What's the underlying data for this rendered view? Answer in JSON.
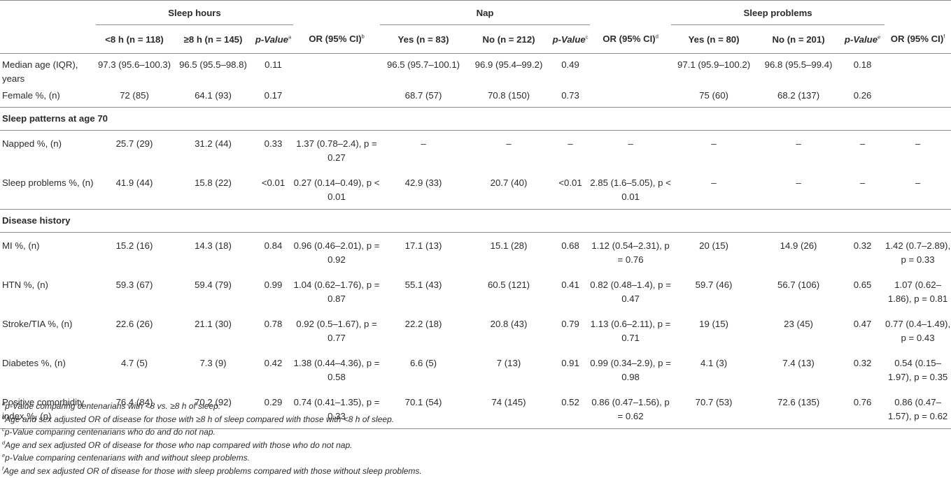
{
  "groups": {
    "sleep_hours": "Sleep hours",
    "nap": "Nap",
    "sleep_problems": "Sleep problems"
  },
  "columns": {
    "lt8": "<8 h (n = 118)",
    "ge8": "≥8 h (n = 145)",
    "pval_a": "p-Value",
    "sup_a": "a",
    "or_b": "OR (95% CI)",
    "sup_b": "b",
    "nap_yes": "Yes (n = 83)",
    "nap_no": "No (n = 212)",
    "pval_c": "p-Value",
    "sup_c": "c",
    "or_d": "OR (95% CI)",
    "sup_d": "d",
    "sp_yes": "Yes (n = 80)",
    "sp_no": "No (n = 201)",
    "pval_e": "p-Value",
    "sup_e": "e",
    "or_f": "OR (95% CI)",
    "sup_f": "f"
  },
  "rows": {
    "age": {
      "label": "Median age (IQR), years",
      "cells": [
        "97.3 (95.6–100.3)",
        "96.5 (95.5–98.8)",
        "0.11",
        "",
        "96.5 (95.7–100.1)",
        "96.9 (95.4–99.2)",
        "0.49",
        "",
        "97.1 (95.9–100.2)",
        "96.8 (95.5–99.4)",
        "0.18",
        ""
      ]
    },
    "female": {
      "label": "Female %, (n)",
      "cells": [
        "72 (85)",
        "64.1 (93)",
        "0.17",
        "",
        "68.7 (57)",
        "70.8 (150)",
        "0.73",
        "",
        "75 (60)",
        "68.2 (137)",
        "0.26",
        ""
      ]
    },
    "sec_patterns": "Sleep patterns at age 70",
    "napped": {
      "label": "Napped %, (n)",
      "cells": [
        "25.7 (29)",
        "31.2 (44)",
        "0.33",
        "1.37 (0.78–2.4), p = 0.27",
        "–",
        "–",
        "–",
        "–",
        "–",
        "–",
        "–",
        "–"
      ]
    },
    "sleepprob": {
      "label": "Sleep problems %, (n)",
      "cells": [
        "41.9 (44)",
        "15.8 (22)",
        "<0.01",
        "0.27 (0.14–0.49), p < 0.01",
        "42.9 (33)",
        "20.7 (40)",
        "<0.01",
        "2.85 (1.6–5.05), p < 0.01",
        "–",
        "–",
        "–",
        "–"
      ]
    },
    "sec_disease": "Disease history",
    "mi": {
      "label": "MI %, (n)",
      "cells": [
        "15.2 (16)",
        "14.3 (18)",
        "0.84",
        "0.96 (0.46–2.01), p = 0.92",
        "17.1 (13)",
        "15.1 (28)",
        "0.68",
        "1.12 (0.54–2.31), p = 0.76",
        "20 (15)",
        "14.9 (26)",
        "0.32",
        "1.42 (0.7–2.89), p = 0.33"
      ]
    },
    "htn": {
      "label": "HTN %, (n)",
      "cells": [
        "59.3 (67)",
        "59.4 (79)",
        "0.99",
        "1.04 (0.62–1.76), p = 0.87",
        "55.1 (43)",
        "60.5 (121)",
        "0.41",
        "0.82 (0.48–1.4), p = 0.47",
        "59.7 (46)",
        "56.7 (106)",
        "0.65",
        "1.07 (0.62–1.86), p = 0.81"
      ]
    },
    "stroke": {
      "label": "Stroke/TIA %, (n)",
      "cells": [
        "22.6 (26)",
        "21.1 (30)",
        "0.78",
        "0.92 (0.5–1.67), p = 0.77",
        "22.2 (18)",
        "20.8 (43)",
        "0.79",
        "1.13 (0.6–2.11), p = 0.71",
        "19 (15)",
        "23 (45)",
        "0.47",
        "0.77 (0.4–1.49), p = 0.43"
      ]
    },
    "diabetes": {
      "label": "Diabetes %, (n)",
      "cells": [
        "4.7 (5)",
        "7.3 (9)",
        "0.42",
        "1.38 (0.44–4.36), p = 0.58",
        "6.6 (5)",
        "7 (13)",
        "0.91",
        "0.99 (0.34–2.9), p = 0.98",
        "4.1 (3)",
        "7.4 (13)",
        "0.32",
        "0.54 (0.15–1.97), p = 0.35"
      ]
    },
    "comorb": {
      "label": "Positive comorbidity index %, (n)",
      "cells": [
        "76.4 (84)",
        "70.2 (92)",
        "0.29",
        "0.74 (0.41–1.35), p = 0.33",
        "70.1 (54)",
        "74 (145)",
        "0.52",
        "0.86 (0.47–1.56), p = 0.62",
        "70.7 (53)",
        "72.6 (135)",
        "0.76",
        "0.86 (0.47–1.57), p = 0.62"
      ]
    }
  },
  "footnotes": [
    {
      "mark": "a",
      "text": "p-Value comparing centenarians with <8 vs. ≥8 h of sleep."
    },
    {
      "mark": "b",
      "text": "Age and sex adjusted OR of disease for those with ≥8 h of sleep compared with those with <8 h of sleep."
    },
    {
      "mark": "c",
      "text": "p-Value comparing centenarians who do and do not nap."
    },
    {
      "mark": "d",
      "text": "Age and sex adjusted OR of disease for those who nap compared with those who do not nap."
    },
    {
      "mark": "e",
      "text": "p-Value comparing centenarians with and without sleep problems."
    },
    {
      "mark": "f",
      "text": "Age and sex adjusted OR of disease for those with sleep problems compared with those without sleep problems."
    }
  ]
}
